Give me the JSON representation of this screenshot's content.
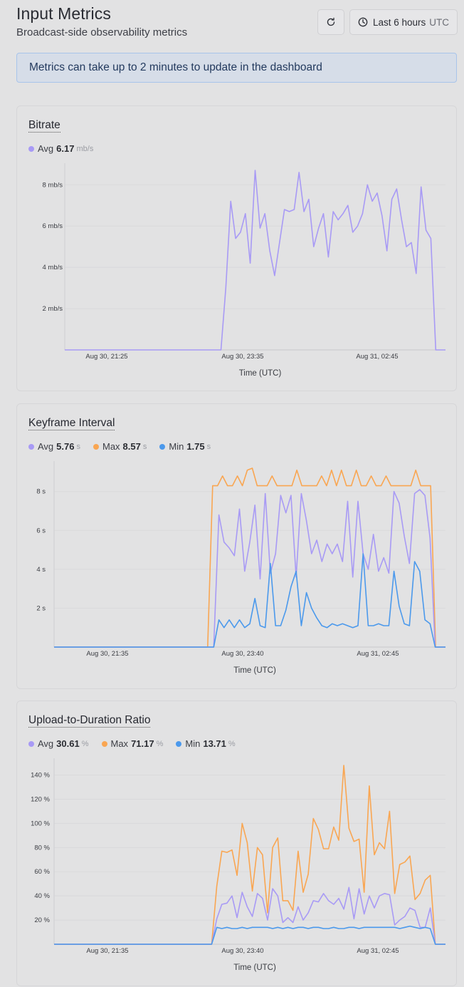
{
  "header": {
    "title": "Input Metrics",
    "subtitle": "Broadcast-side observability metrics"
  },
  "toolbar": {
    "time_range_label": "Last 6 hours",
    "timezone": "UTC"
  },
  "alert": {
    "text": "Metrics can take up to 2 minutes to update in the dashboard"
  },
  "colors": {
    "avg": "#a89af5",
    "max": "#f9a652",
    "min": "#4b99ec"
  },
  "icons": [
    "refresh-icon",
    "clock-icon"
  ],
  "charts": [
    {
      "title": "Bitrate",
      "legend": [
        {
          "label": "Avg",
          "value": "6.17",
          "unit": "mb/s"
        }
      ]
    },
    {
      "title": "Keyframe Interval",
      "legend": [
        {
          "label": "Avg",
          "value": "5.76",
          "unit": "s"
        },
        {
          "label": "Max",
          "value": "8.57",
          "unit": "s"
        },
        {
          "label": "Min",
          "value": "1.75",
          "unit": "s"
        }
      ]
    },
    {
      "title": "Upload-to-Duration Ratio",
      "legend": [
        {
          "label": "Avg",
          "value": "30.61",
          "unit": "%"
        },
        {
          "label": "Max",
          "value": "71.17",
          "unit": "%"
        },
        {
          "label": "Min",
          "value": "13.71",
          "unit": "%"
        }
      ]
    }
  ],
  "chart_data": [
    {
      "type": "line",
      "title": "Bitrate",
      "xlabel": "Time (UTC)",
      "ylabel": "",
      "x_tick_labels": [
        "Aug 30, 21:25",
        "Aug 30, 23:35",
        "Aug 31, 02:45"
      ],
      "y_tick_labels": [
        "2 mb/s",
        "4 mb/s",
        "6 mb/s",
        "8 mb/s"
      ],
      "y_ticks": [
        2,
        4,
        6,
        8
      ],
      "ylim": [
        0,
        8.7
      ],
      "grid": true,
      "legend_position": "top-left",
      "series": [
        {
          "name": "Avg",
          "values": [
            0,
            0,
            0,
            0,
            0,
            0,
            0,
            0,
            0,
            0,
            0,
            0,
            0,
            0,
            0,
            0,
            0,
            0,
            0,
            0,
            0,
            0,
            0,
            0,
            0,
            0,
            0,
            0,
            0,
            0,
            0,
            0,
            0,
            3.0,
            7.2,
            5.4,
            5.7,
            6.6,
            4.2,
            8.7,
            5.9,
            6.6,
            4.8,
            3.6,
            5.2,
            6.8,
            6.7,
            6.8,
            8.6,
            6.7,
            7.3,
            5.0,
            5.9,
            6.6,
            4.5,
            6.7,
            6.3,
            6.6,
            7.0,
            5.7,
            6.0,
            6.6,
            8.0,
            7.2,
            7.6,
            6.5,
            4.8,
            7.3,
            7.8,
            6.3,
            5.0,
            5.2,
            3.7,
            7.9,
            5.8,
            5.4,
            0,
            0,
            0
          ]
        }
      ]
    },
    {
      "type": "line",
      "title": "Keyframe Interval",
      "xlabel": "Time (UTC)",
      "ylabel": "",
      "x_tick_labels": [
        "Aug 30, 21:35",
        "Aug 30, 23:40",
        "Aug 31, 02:45"
      ],
      "y_tick_labels": [
        "2 s",
        "4 s",
        "6 s",
        "8 s"
      ],
      "y_ticks": [
        2,
        4,
        6,
        8
      ],
      "ylim": [
        0,
        9.2
      ],
      "grid": true,
      "legend_position": "top-left",
      "series": [
        {
          "name": "Max",
          "values": [
            0,
            0,
            0,
            0,
            0,
            0,
            0,
            0,
            0,
            0,
            0,
            0,
            0,
            0,
            0,
            0,
            0,
            0,
            0,
            0,
            0,
            0,
            0,
            0,
            0,
            0,
            0,
            0,
            0,
            0,
            0,
            0,
            8.3,
            8.3,
            8.8,
            8.3,
            8.3,
            8.8,
            8.3,
            9.1,
            9.2,
            8.3,
            8.3,
            8.3,
            8.8,
            8.3,
            8.3,
            8.3,
            8.3,
            9.1,
            8.3,
            8.3,
            8.3,
            8.3,
            8.8,
            8.3,
            9.1,
            8.3,
            9.1,
            8.3,
            8.3,
            9.1,
            8.3,
            8.3,
            8.8,
            8.3,
            8.3,
            8.8,
            8.3,
            8.3,
            8.3,
            8.3,
            8.3,
            9.1,
            8.3,
            8.3,
            8.3,
            0,
            0,
            0
          ]
        },
        {
          "name": "Avg",
          "values": [
            0,
            0,
            0,
            0,
            0,
            0,
            0,
            0,
            0,
            0,
            0,
            0,
            0,
            0,
            0,
            0,
            0,
            0,
            0,
            0,
            0,
            0,
            0,
            0,
            0,
            0,
            0,
            0,
            0,
            0,
            0,
            0,
            6.8,
            5.4,
            5.1,
            4.7,
            7.1,
            3.9,
            5.4,
            7.3,
            3.5,
            7.9,
            3.8,
            4.8,
            7.8,
            6.9,
            7.8,
            3.6,
            7.9,
            6.5,
            4.8,
            5.5,
            4.4,
            5.3,
            4.8,
            5.3,
            4.4,
            7.5,
            3.6,
            7.5,
            4.8,
            4.0,
            5.8,
            3.9,
            4.6,
            3.8,
            8.0,
            7.4,
            5.7,
            4.3,
            7.9,
            8.1,
            7.8,
            5.6,
            0,
            0,
            0
          ]
        },
        {
          "name": "Min",
          "values": [
            0,
            0,
            0,
            0,
            0,
            0,
            0,
            0,
            0,
            0,
            0,
            0,
            0,
            0,
            0,
            0,
            0,
            0,
            0,
            0,
            0,
            0,
            0,
            0,
            0,
            0,
            0,
            0,
            0,
            0,
            0,
            0,
            1.4,
            1.0,
            1.4,
            1.0,
            1.4,
            1.0,
            1.2,
            2.5,
            1.1,
            1.0,
            4.3,
            1.1,
            1.1,
            1.9,
            3.1,
            3.9,
            1.1,
            2.8,
            2.0,
            1.5,
            1.1,
            1.0,
            1.2,
            1.1,
            1.2,
            1.1,
            1.0,
            1.1,
            4.8,
            1.1,
            1.1,
            1.2,
            1.1,
            1.1,
            3.9,
            2.1,
            1.2,
            1.1,
            4.4,
            3.9,
            1.4,
            1.2,
            0,
            0,
            0
          ]
        }
      ]
    },
    {
      "type": "line",
      "title": "Upload-to-Duration Ratio",
      "xlabel": "Time (UTC)",
      "ylabel": "",
      "x_tick_labels": [
        "Aug 30, 21:35",
        "Aug 30, 23:40",
        "Aug 31, 02:45"
      ],
      "y_tick_labels": [
        "20 %",
        "40 %",
        "60 %",
        "80 %",
        "100 %",
        "120 %",
        "140 %"
      ],
      "y_ticks": [
        20,
        40,
        60,
        80,
        100,
        120,
        140
      ],
      "ylim": [
        0,
        148
      ],
      "grid": true,
      "legend_position": "top-left",
      "series": [
        {
          "name": "Max",
          "values": [
            0,
            0,
            0,
            0,
            0,
            0,
            0,
            0,
            0,
            0,
            0,
            0,
            0,
            0,
            0,
            0,
            0,
            0,
            0,
            0,
            0,
            0,
            0,
            0,
            0,
            0,
            0,
            0,
            0,
            0,
            0,
            0,
            48,
            77,
            76,
            78,
            57,
            100,
            84,
            44,
            80,
            74,
            26,
            80,
            88,
            36,
            36,
            28,
            77,
            43,
            58,
            104,
            95,
            79,
            79,
            97,
            86,
            148,
            96,
            85,
            87,
            43,
            131,
            74,
            84,
            79,
            110,
            42,
            66,
            68,
            73,
            37,
            42,
            53,
            57,
            0,
            0,
            0
          ]
        },
        {
          "name": "Avg",
          "values": [
            0,
            0,
            0,
            0,
            0,
            0,
            0,
            0,
            0,
            0,
            0,
            0,
            0,
            0,
            0,
            0,
            0,
            0,
            0,
            0,
            0,
            0,
            0,
            0,
            0,
            0,
            0,
            0,
            0,
            0,
            0,
            0,
            21,
            33,
            34,
            40,
            22,
            43,
            31,
            23,
            42,
            38,
            20,
            46,
            40,
            18,
            22,
            18,
            31,
            20,
            26,
            36,
            35,
            42,
            36,
            33,
            38,
            29,
            47,
            21,
            46,
            25,
            40,
            30,
            40,
            42,
            41,
            16,
            20,
            23,
            30,
            28,
            14,
            14,
            30,
            0,
            0,
            0
          ]
        },
        {
          "name": "Min",
          "values": [
            0,
            0,
            0,
            0,
            0,
            0,
            0,
            0,
            0,
            0,
            0,
            0,
            0,
            0,
            0,
            0,
            0,
            0,
            0,
            0,
            0,
            0,
            0,
            0,
            0,
            0,
            0,
            0,
            0,
            0,
            0,
            0,
            14,
            13,
            14,
            13,
            13,
            14,
            13,
            14,
            14,
            14,
            14,
            13,
            14,
            13,
            14,
            13,
            14,
            14,
            13,
            14,
            14,
            13,
            13,
            14,
            13,
            13,
            14,
            14,
            13,
            14,
            14,
            14,
            14,
            14,
            14,
            14,
            13,
            14,
            15,
            14,
            13,
            14,
            13,
            0,
            0,
            0
          ]
        }
      ]
    }
  ]
}
